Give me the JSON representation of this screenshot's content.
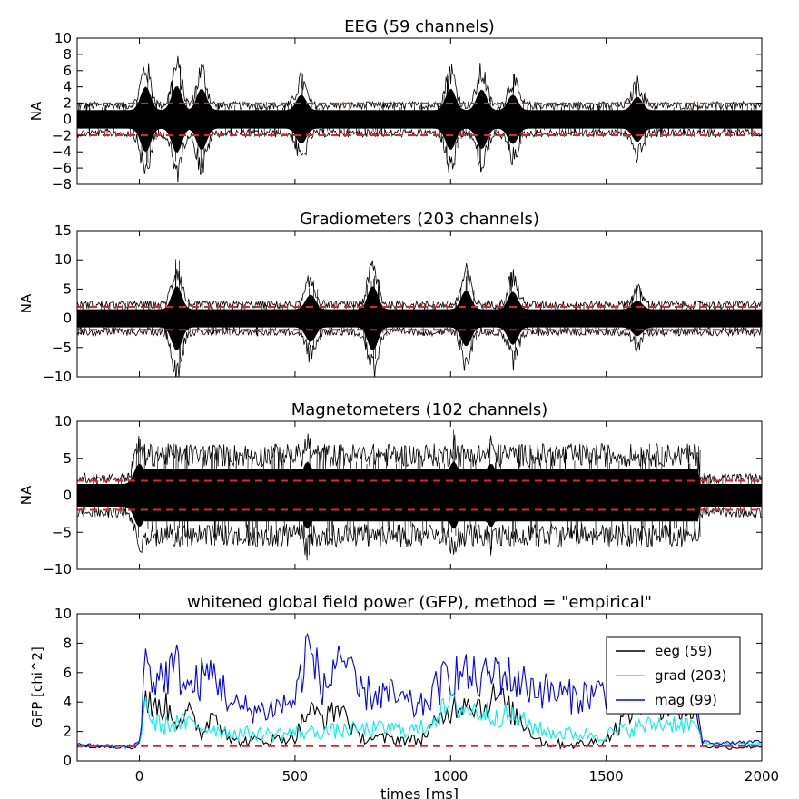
{
  "chart_data": [
    {
      "type": "line",
      "title": "EEG (59 channels)",
      "ylabel": "NA",
      "xlabel": "",
      "xlim": [
        -200,
        2000
      ],
      "ylim": [
        -8,
        10
      ],
      "yticks": [
        -8,
        -6,
        -4,
        -2,
        0,
        2,
        4,
        6,
        8,
        10
      ],
      "yticklabels": [
        "−8",
        "−6",
        "−4",
        "−2",
        "0",
        "2",
        "4",
        "6",
        "8",
        "10"
      ],
      "thresholds": [
        1.96,
        -1.96
      ],
      "threshold_color": "#e8222a",
      "series_color": "#000000",
      "baseline_amplitude": 2.2,
      "events": [
        {
          "t": 20,
          "amp": 8.0
        },
        {
          "t": 120,
          "amp": 8.2
        },
        {
          "t": 200,
          "amp": 7.5
        },
        {
          "t": 520,
          "amp": 6.0
        },
        {
          "t": 1000,
          "amp": 7.5
        },
        {
          "t": 1100,
          "amp": 7.3
        },
        {
          "t": 1200,
          "amp": 6.0
        },
        {
          "t": 1600,
          "amp": 5.5
        }
      ]
    },
    {
      "type": "line",
      "title": "Gradiometers (203 channels)",
      "ylabel": "NA",
      "xlabel": "",
      "xlim": [
        -200,
        2000
      ],
      "ylim": [
        -10,
        15
      ],
      "yticks": [
        -10,
        -5,
        0,
        5,
        10,
        15
      ],
      "yticklabels": [
        "−10",
        "−5",
        "0",
        "5",
        "10",
        "15"
      ],
      "thresholds": [
        1.96,
        -1.96
      ],
      "threshold_color": "#e8222a",
      "series_color": "#000000",
      "baseline_amplitude": 3.0,
      "events": [
        {
          "t": 120,
          "amp": 11.0
        },
        {
          "t": 550,
          "amp": 8.0
        },
        {
          "t": 750,
          "amp": 11.0
        },
        {
          "t": 1050,
          "amp": 9.5
        },
        {
          "t": 1200,
          "amp": 9.0
        },
        {
          "t": 1600,
          "amp": 6.0
        }
      ]
    },
    {
      "type": "line",
      "title": "Magnetometers (102 channels)",
      "ylabel": "NA",
      "xlabel": "",
      "xlim": [
        -200,
        2000
      ],
      "ylim": [
        -10,
        10
      ],
      "yticks": [
        -10,
        -5,
        0,
        5,
        10
      ],
      "yticklabels": [
        "−10",
        "−5",
        "0",
        "5",
        "10"
      ],
      "thresholds": [
        1.96,
        -1.96
      ],
      "threshold_color": "#e8222a",
      "series_color": "#000000",
      "baseline_amplitude": 3.0,
      "active_range": [
        0,
        1800
      ],
      "active_amplitude": 7.0,
      "events": [
        {
          "t": 0,
          "amp": 8.5
        },
        {
          "t": 540,
          "amp": 9.0
        },
        {
          "t": 1010,
          "amp": 9.0
        },
        {
          "t": 1130,
          "amp": 8.5
        }
      ]
    },
    {
      "type": "line",
      "title": "whitened global field power (GFP), method = \"empirical\"",
      "ylabel": "GFP [chi^2]",
      "xlabel": "times [ms]",
      "xlim": [
        -200,
        2000
      ],
      "ylim": [
        0,
        10
      ],
      "yticks": [
        0,
        2,
        4,
        6,
        8,
        10
      ],
      "yticklabels": [
        "0",
        "2",
        "4",
        "6",
        "8",
        "10"
      ],
      "xticks": [
        0,
        500,
        1000,
        1500,
        2000
      ],
      "xticklabels": [
        "0",
        "500",
        "1000",
        "1500",
        "2000"
      ],
      "thresholds": [
        1.0
      ],
      "threshold_color": "#e8222a",
      "legend": "upper right",
      "series": [
        {
          "name": "eeg (59)",
          "color": "#000000",
          "x": [
            -200,
            -100,
            -20,
            0,
            20,
            40,
            80,
            120,
            160,
            200,
            240,
            300,
            400,
            500,
            540,
            600,
            650,
            700,
            800,
            900,
            1000,
            1050,
            1100,
            1150,
            1200,
            1300,
            1400,
            1500,
            1600,
            1700,
            1790,
            1810,
            1900,
            2000
          ],
          "values": [
            1.0,
            1.0,
            0.9,
            1.2,
            4.5,
            3.5,
            3.8,
            2.8,
            3.2,
            1.8,
            3.4,
            1.3,
            1.4,
            1.6,
            3.4,
            2.9,
            3.7,
            1.6,
            1.5,
            1.4,
            3.5,
            4.3,
            3.6,
            4.5,
            3.2,
            1.2,
            1.1,
            1.4,
            4.0,
            3.8,
            3.2,
            1.0,
            0.9,
            1.0
          ]
        },
        {
          "name": "grad (203)",
          "color": "#00f0f0",
          "x": [
            -200,
            -100,
            -20,
            0,
            20,
            40,
            80,
            120,
            160,
            200,
            240,
            300,
            400,
            500,
            600,
            700,
            800,
            900,
            1000,
            1100,
            1200,
            1300,
            1400,
            1500,
            1600,
            1700,
            1790,
            1810,
            1900,
            2000
          ],
          "values": [
            1.0,
            1.0,
            0.9,
            1.3,
            4.3,
            2.6,
            2.4,
            2.6,
            2.5,
            2.3,
            2.2,
            1.9,
            1.8,
            1.9,
            2.0,
            2.1,
            2.2,
            2.1,
            3.8,
            3.3,
            3.0,
            2.0,
            1.8,
            1.8,
            2.3,
            2.6,
            2.4,
            1.2,
            1.1,
            1.2
          ]
        },
        {
          "name": "mag (99)",
          "color": "#0000ff",
          "x": [
            -200,
            -100,
            -20,
            0,
            20,
            40,
            80,
            120,
            160,
            200,
            240,
            300,
            400,
            500,
            540,
            600,
            640,
            700,
            800,
            900,
            1000,
            1050,
            1100,
            1150,
            1200,
            1300,
            1400,
            1500,
            1600,
            1700,
            1790,
            1810,
            1900,
            2000
          ],
          "values": [
            1.1,
            1.0,
            1.0,
            1.4,
            6.9,
            5.5,
            5.8,
            6.4,
            4.8,
            5.6,
            6.0,
            3.7,
            3.4,
            4.1,
            7.8,
            4.5,
            7.7,
            4.6,
            4.5,
            3.5,
            6.0,
            5.8,
            5.4,
            6.2,
            5.5,
            4.8,
            4.3,
            4.8,
            6.6,
            5.2,
            4.1,
            1.3,
            1.2,
            1.3
          ]
        }
      ]
    }
  ]
}
